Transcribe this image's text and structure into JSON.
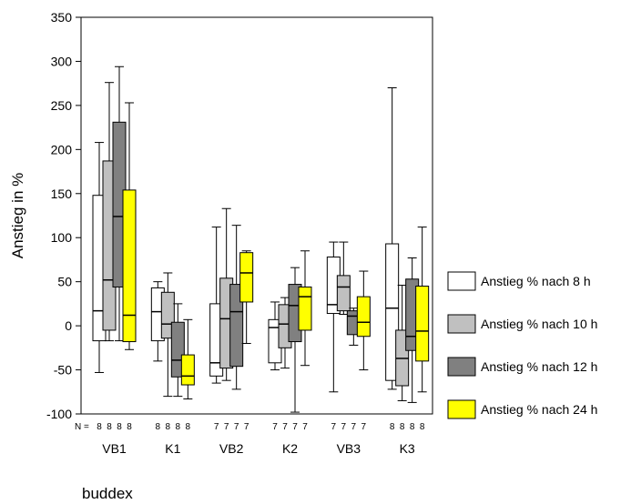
{
  "chart_data": {
    "type": "boxplot",
    "title": "",
    "xlabel": "buddex",
    "ylabel": "Anstieg in %",
    "ylim": [
      -100,
      350
    ],
    "yticks": [
      -100,
      -50,
      0,
      50,
      100,
      150,
      200,
      250,
      300,
      350
    ],
    "categories": [
      "VB1",
      "K1",
      "VB2",
      "K2",
      "VB3",
      "K3"
    ],
    "n_label": "N =",
    "n_counts": [
      [
        "8",
        "8",
        "8",
        "8"
      ],
      [
        "8",
        "8",
        "8",
        "8"
      ],
      [
        "7",
        "7",
        "7",
        "7"
      ],
      [
        "7",
        "7",
        "7",
        "7"
      ],
      [
        "7",
        "7",
        "7",
        "7"
      ],
      [
        "8",
        "8",
        "8",
        "8"
      ]
    ],
    "legend_position": "right",
    "series": [
      {
        "name": "Anstieg % nach 8 h",
        "color": "#ffffff",
        "boxes": [
          {
            "min": -53,
            "q1": -17,
            "median": 17,
            "q3": 148,
            "max": 208
          },
          {
            "min": -40,
            "q1": -17,
            "median": 16,
            "q3": 43,
            "max": 50
          },
          {
            "min": -65,
            "q1": -57,
            "median": -42,
            "q3": 25,
            "max": 112
          },
          {
            "min": -50,
            "q1": -42,
            "median": -2,
            "q3": 7,
            "max": 27
          },
          {
            "min": -75,
            "q1": 14,
            "median": 24,
            "q3": 78,
            "max": 95
          },
          {
            "min": -72,
            "q1": -62,
            "median": 20,
            "q3": 93,
            "max": 270
          }
        ]
      },
      {
        "name": "Anstieg % nach 10 h",
        "color": "#c0c0c0",
        "boxes": [
          {
            "min": -17,
            "q1": -5,
            "median": 52,
            "q3": 187,
            "max": 276
          },
          {
            "min": -80,
            "q1": -14,
            "median": 2,
            "q3": 38,
            "max": 60
          },
          {
            "min": -62,
            "q1": -48,
            "median": 8,
            "q3": 54,
            "max": 133
          },
          {
            "min": -48,
            "q1": -25,
            "median": 2,
            "q3": 24,
            "max": 32
          },
          {
            "min": 13,
            "q1": 17,
            "median": 44,
            "q3": 57,
            "max": 95
          },
          {
            "min": -85,
            "q1": -68,
            "median": -37,
            "q3": -5,
            "max": 46
          }
        ]
      },
      {
        "name": "Anstieg % nach 12 h",
        "color": "#808080",
        "boxes": [
          {
            "min": -17,
            "q1": 44,
            "median": 124,
            "q3": 231,
            "max": 294
          },
          {
            "min": -80,
            "q1": -58,
            "median": -39,
            "q3": 4,
            "max": 25
          },
          {
            "min": -72,
            "q1": -46,
            "median": 16,
            "q3": 47,
            "max": 114
          },
          {
            "min": -98,
            "q1": -18,
            "median": 23,
            "q3": 47,
            "max": 66
          },
          {
            "min": -22,
            "q1": -10,
            "median": 11,
            "q3": 17,
            "max": 20
          },
          {
            "min": -87,
            "q1": -28,
            "median": -12,
            "q3": 53,
            "max": 77
          }
        ]
      },
      {
        "name": "Anstieg % nach 24 h",
        "color": "#ffff00",
        "boxes": [
          {
            "min": -27,
            "q1": -18,
            "median": 12,
            "q3": 154,
            "max": 253
          },
          {
            "min": -83,
            "q1": -67,
            "median": -57,
            "q3": -33,
            "max": 7
          },
          {
            "min": -20,
            "q1": 27,
            "median": 60,
            "q3": 83,
            "max": 85
          },
          {
            "min": -45,
            "q1": -5,
            "median": 33,
            "q3": 44,
            "max": 85
          },
          {
            "min": -50,
            "q1": -12,
            "median": 4,
            "q3": 33,
            "max": 62
          },
          {
            "min": -75,
            "q1": -40,
            "median": -6,
            "q3": 45,
            "max": 112
          }
        ]
      }
    ]
  }
}
